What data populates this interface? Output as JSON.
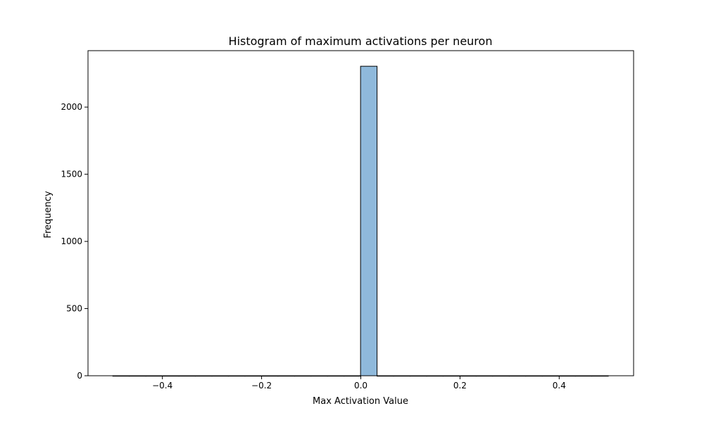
{
  "chart_data": {
    "type": "bar",
    "title": "Histogram of maximum activations per neuron",
    "xlabel": "Max Activation Value",
    "ylabel": "Frequency",
    "xlim": [
      -0.55,
      0.55
    ],
    "ylim": [
      0,
      2420
    ],
    "xticks": [
      {
        "value": -0.4,
        "label": "−0.4"
      },
      {
        "value": -0.2,
        "label": "−0.2"
      },
      {
        "value": 0.0,
        "label": "0.0"
      },
      {
        "value": 0.2,
        "label": "0.2"
      },
      {
        "value": 0.4,
        "label": "0.4"
      }
    ],
    "yticks": [
      {
        "value": 0,
        "label": "0"
      },
      {
        "value": 500,
        "label": "500"
      },
      {
        "value": 1000,
        "label": "1000"
      },
      {
        "value": 1500,
        "label": "1500"
      },
      {
        "value": 2000,
        "label": "2000"
      }
    ],
    "bins": {
      "start": -0.5,
      "width": 0.0333,
      "counts": [
        0,
        0,
        0,
        0,
        0,
        0,
        0,
        0,
        0,
        0,
        0,
        0,
        0,
        0,
        0,
        2304,
        0,
        0,
        0,
        0,
        0,
        0,
        0,
        0,
        0,
        0,
        0,
        0,
        0,
        0
      ]
    },
    "bar_color": "#8fb9db",
    "edge_color": "#000000",
    "grid": false,
    "legend": "none"
  }
}
